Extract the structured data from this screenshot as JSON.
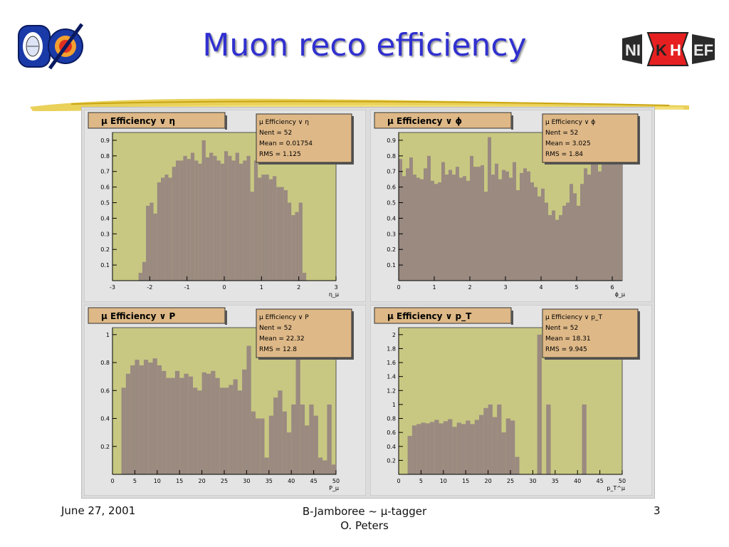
{
  "slide": {
    "title": "Muon reco efficiency",
    "footer_date": "June 27, 2001",
    "footer_line1": "B-Jamboree ~ μ-tagger",
    "footer_line2": "O. Peters",
    "page_number": "3",
    "logo_left_text": "DØ",
    "logo_right_text": "NIKHEF"
  },
  "colors": {
    "title": "#3030d0",
    "plot_bg": "#c8c882",
    "bar_fill": "#9a8a80",
    "stats_bg": "#deb887",
    "panel_bg": "#dcdcdc"
  },
  "chart_data": [
    {
      "type": "bar",
      "title": "μ Efficiency ∨ η",
      "xlabel": "η_μ",
      "xlim": [
        -3,
        3
      ],
      "ylim": [
        0,
        0.95
      ],
      "xticks": [
        -3,
        -2,
        -1,
        0,
        1,
        2,
        3
      ],
      "yticks": [
        0.1,
        0.2,
        0.3,
        0.4,
        0.5,
        0.6,
        0.7,
        0.8,
        0.9
      ],
      "stats": {
        "title": "μ Efficiency ∨ η",
        "entries": "Nent = 52",
        "mean": "Mean  =  0.01754",
        "rms": "RMS   =  1.125"
      },
      "bin_start": -2.3,
      "bin_width": 0.1,
      "values": [
        0.05,
        0.12,
        0.48,
        0.5,
        0.43,
        0.63,
        0.66,
        0.68,
        0.66,
        0.73,
        0.77,
        0.77,
        0.8,
        0.78,
        0.82,
        0.77,
        0.75,
        0.9,
        0.79,
        0.82,
        0.8,
        0.77,
        0.75,
        0.83,
        0.8,
        0.77,
        0.82,
        0.75,
        0.77,
        0.8,
        0.57,
        0.77,
        0.66,
        0.68,
        0.68,
        0.65,
        0.67,
        0.6,
        0.6,
        0.58,
        0.5,
        0.42,
        0.44,
        0.5,
        0.05
      ]
    },
    {
      "type": "bar",
      "title": "μ Efficiency ∨ ϕ",
      "xlabel": "ϕ_μ",
      "xlim": [
        0,
        6.28
      ],
      "ylim": [
        0,
        0.95
      ],
      "xticks": [
        0,
        1,
        2,
        3,
        4,
        5,
        6
      ],
      "yticks": [
        0.1,
        0.2,
        0.3,
        0.4,
        0.5,
        0.6,
        0.7,
        0.8,
        0.9
      ],
      "stats": {
        "title": "μ Efficiency ∨ ϕ",
        "entries": "Nent = 52",
        "mean": "Mean  =  3.025",
        "rms": "RMS   =  1.84"
      },
      "bin_start": 0,
      "bin_width": 0.1,
      "values": [
        0.78,
        0.67,
        0.72,
        0.79,
        0.68,
        0.66,
        0.65,
        0.72,
        0.8,
        0.64,
        0.62,
        0.63,
        0.76,
        0.68,
        0.71,
        0.68,
        0.73,
        0.66,
        0.67,
        0.64,
        0.8,
        0.73,
        0.73,
        0.74,
        0.57,
        0.92,
        0.68,
        0.75,
        0.65,
        0.71,
        0.7,
        0.66,
        0.76,
        0.58,
        0.69,
        0.72,
        0.7,
        0.63,
        0.6,
        0.54,
        0.59,
        0.5,
        0.42,
        0.45,
        0.39,
        0.42,
        0.48,
        0.5,
        0.62,
        0.56,
        0.48,
        0.62,
        0.72,
        0.68,
        0.85,
        0.78,
        0.7,
        0.8,
        0.78,
        0.82,
        0.84,
        0.88,
        0.85
      ]
    },
    {
      "type": "bar",
      "title": "μ Efficiency ∨ P",
      "xlabel": "P_μ",
      "xlim": [
        0,
        50
      ],
      "ylim": [
        0,
        1.05
      ],
      "xticks": [
        0,
        5,
        10,
        15,
        20,
        25,
        30,
        35,
        40,
        45,
        50
      ],
      "yticks": [
        0.2,
        0.4,
        0.6,
        0.8,
        1
      ],
      "stats": {
        "title": "μ Efficiency ∨ P",
        "entries": "Nent = 52",
        "mean": "Mean  =  22.32",
        "rms": "RMS   =  12.8"
      },
      "bin_start": 2,
      "bin_width": 1,
      "values": [
        0.62,
        0.72,
        0.78,
        0.82,
        0.78,
        0.82,
        0.8,
        0.83,
        0.78,
        0.74,
        0.69,
        0.69,
        0.74,
        0.69,
        0.72,
        0.7,
        0.62,
        0.6,
        0.73,
        0.72,
        0.74,
        0.69,
        0.62,
        0.62,
        0.64,
        0.68,
        0.6,
        0.75,
        0.92,
        0.45,
        0.4,
        0.4,
        0.12,
        0.42,
        0.55,
        0.6,
        0.45,
        0.3,
        0.5,
        0.84,
        0.5,
        0.35,
        0.5,
        0.42,
        0.12,
        0.1,
        0.5,
        0.07
      ]
    },
    {
      "type": "bar",
      "title": "μ Efficiency ∨ p_T",
      "xlabel": "p_T^μ",
      "xlim": [
        0,
        50
      ],
      "ylim": [
        0,
        2.1
      ],
      "xticks": [
        0,
        5,
        10,
        15,
        20,
        25,
        30,
        35,
        40,
        45,
        50
      ],
      "yticks": [
        0.2,
        0.4,
        0.6,
        0.8,
        1,
        1.2,
        1.4,
        1.6,
        1.8,
        2
      ],
      "stats": {
        "title": "μ Efficiency ∨ p_T",
        "entries": "Nent = 52",
        "mean": "Mean  =  18.31",
        "rms": "RMS   =  9.945"
      },
      "bin_start": 2,
      "bin_width": 1,
      "values": [
        0.55,
        0.7,
        0.72,
        0.74,
        0.73,
        0.75,
        0.78,
        0.73,
        0.76,
        0.79,
        0.68,
        0.74,
        0.72,
        0.77,
        0.72,
        0.78,
        0.85,
        0.95,
        1.0,
        0.82,
        1.0,
        0.6,
        0.8,
        0.77,
        0.25,
        0,
        0,
        0,
        0,
        2,
        0,
        1,
        0,
        0,
        0,
        0,
        0,
        0,
        0,
        1
      ]
    }
  ]
}
